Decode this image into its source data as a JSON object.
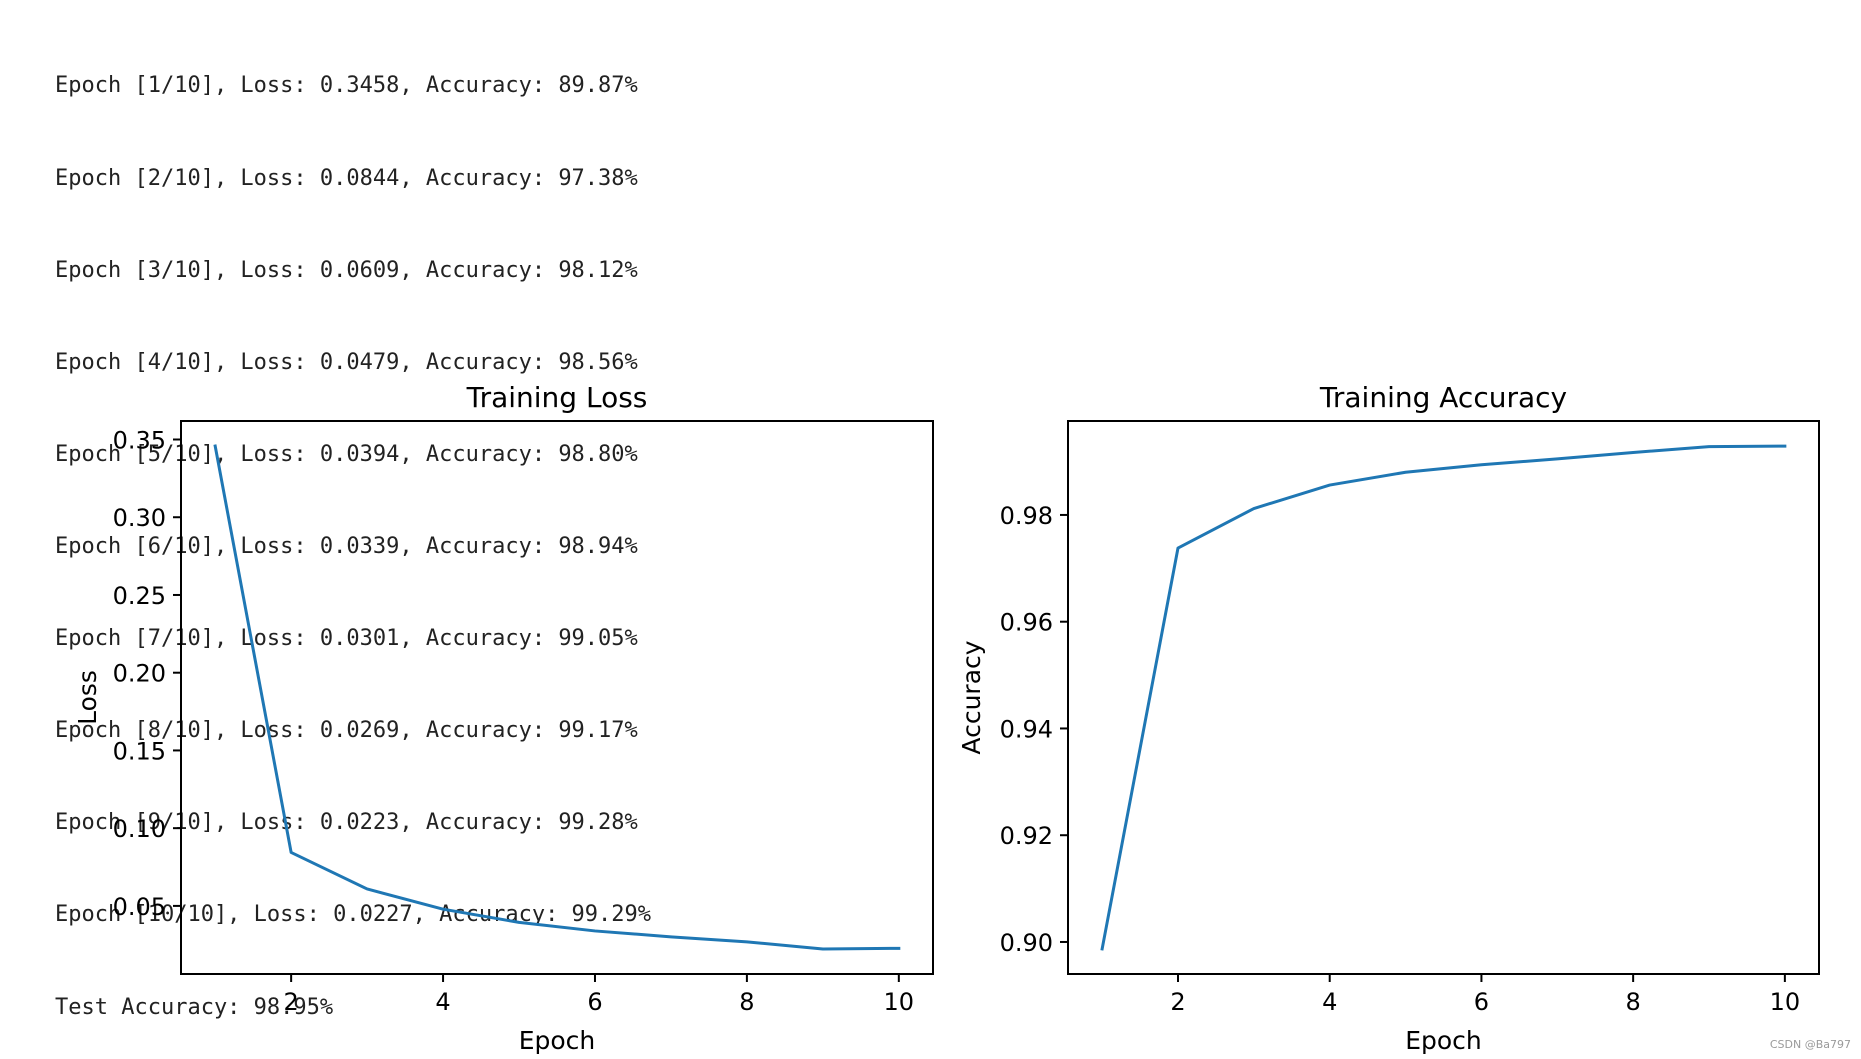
{
  "console": {
    "lines": [
      "Epoch [1/10], Loss: 0.3458, Accuracy: 89.87%",
      "Epoch [2/10], Loss: 0.0844, Accuracy: 97.38%",
      "Epoch [3/10], Loss: 0.0609, Accuracy: 98.12%",
      "Epoch [4/10], Loss: 0.0479, Accuracy: 98.56%",
      "Epoch [5/10], Loss: 0.0394, Accuracy: 98.80%",
      "Epoch [6/10], Loss: 0.0339, Accuracy: 98.94%",
      "Epoch [7/10], Loss: 0.0301, Accuracy: 99.05%",
      "Epoch [8/10], Loss: 0.0269, Accuracy: 99.17%",
      "Epoch [9/10], Loss: 0.0223, Accuracy: 99.28%",
      "Epoch [10/10], Loss: 0.0227, Accuracy: 99.29%",
      "Test Accuracy: 98.95%"
    ]
  },
  "colors": {
    "line": "#1f77b4",
    "axis": "#000000"
  },
  "chart_data": [
    {
      "type": "line",
      "title": "Training Loss",
      "xlabel": "Epoch",
      "ylabel": "Loss",
      "x": [
        1,
        2,
        3,
        4,
        5,
        6,
        7,
        8,
        9,
        10
      ],
      "series": [
        {
          "name": "Loss",
          "values": [
            0.3458,
            0.0844,
            0.0609,
            0.0479,
            0.0394,
            0.0339,
            0.0301,
            0.0269,
            0.0223,
            0.0227
          ]
        }
      ],
      "xlim": [
        0.55,
        10.45
      ],
      "ylim": [
        0.0062,
        0.3619
      ],
      "xticks": [
        2,
        4,
        6,
        8,
        10
      ],
      "xtick_labels": [
        "2",
        "4",
        "6",
        "8",
        "10"
      ],
      "yticks": [
        0.05,
        0.1,
        0.15,
        0.2,
        0.25,
        0.3,
        0.35
      ],
      "ytick_labels": [
        "0.05",
        "0.10",
        "0.15",
        "0.20",
        "0.25",
        "0.30",
        "0.35"
      ],
      "grid": false
    },
    {
      "type": "line",
      "title": "Training Accuracy",
      "xlabel": "Epoch",
      "ylabel": "Accuracy",
      "x": [
        1,
        2,
        3,
        4,
        5,
        6,
        7,
        8,
        9,
        10
      ],
      "series": [
        {
          "name": "Accuracy",
          "values": [
            0.8987,
            0.9738,
            0.9812,
            0.9856,
            0.988,
            0.9894,
            0.9905,
            0.9917,
            0.9928,
            0.9929
          ]
        }
      ],
      "xlim": [
        0.55,
        10.45
      ],
      "ylim": [
        0.894,
        0.9976
      ],
      "xticks": [
        2,
        4,
        6,
        8,
        10
      ],
      "xtick_labels": [
        "2",
        "4",
        "6",
        "8",
        "10"
      ],
      "yticks": [
        0.9,
        0.92,
        0.94,
        0.96,
        0.98
      ],
      "ytick_labels": [
        "0.90",
        "0.92",
        "0.94",
        "0.96",
        "0.98"
      ],
      "grid": false
    }
  ],
  "watermark": "CSDN @Ba797"
}
